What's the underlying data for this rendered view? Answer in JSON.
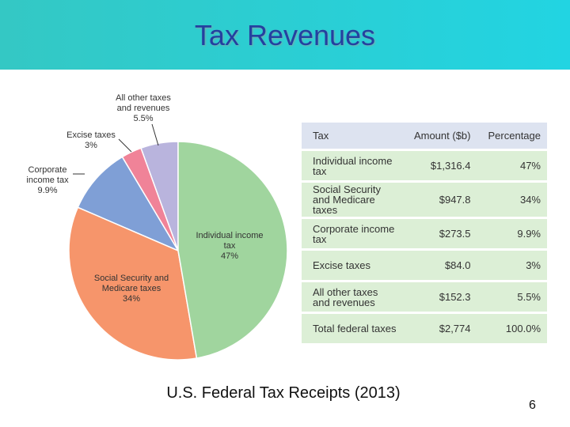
{
  "header": {
    "title": "Tax Revenues"
  },
  "chart_data": {
    "type": "pie",
    "categories": [
      "Individual income tax",
      "Social Security and Medicare taxes",
      "Corporate income tax",
      "Excise taxes",
      "All other taxes and revenues"
    ],
    "values": [
      47,
      34,
      9.9,
      3,
      5.5
    ],
    "value_labels": [
      "47%",
      "34%",
      "9.9%",
      "3%",
      "5.5%"
    ],
    "colors": [
      "#a0d59e",
      "#f6956b",
      "#7f9fd6",
      "#f08398",
      "#b9b4dd"
    ]
  },
  "table": {
    "header": [
      "Tax",
      "Amount ($b)",
      "Percentage"
    ],
    "rows": [
      [
        "Individual income tax",
        "$1,316.4",
        "47%"
      ],
      [
        "Social Security and Medicare taxes",
        "$947.8",
        "34%"
      ],
      [
        "Corporate income tax",
        "$273.5",
        "9.9%"
      ],
      [
        "Excise taxes",
        "$84.0",
        "3%"
      ],
      [
        "All other taxes and revenues",
        "$152.3",
        "5.5%"
      ],
      [
        "Total federal taxes",
        "$2,774",
        "100.0%"
      ]
    ]
  },
  "caption": "U.S. Federal Tax Receipts (2013)",
  "page_number": "6"
}
